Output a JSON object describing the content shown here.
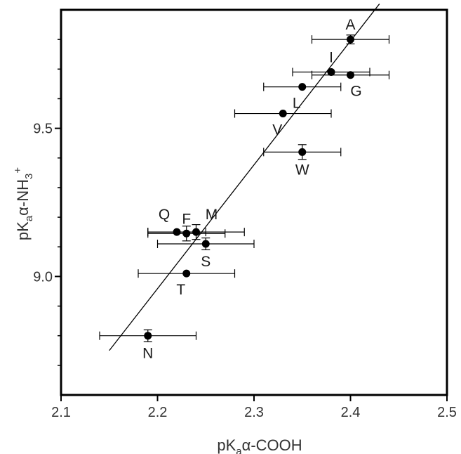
{
  "chart_data": {
    "type": "scatter",
    "title": "",
    "xlabel": {
      "prefix": "pK",
      "sub": "a",
      "suffix": "α-COOH"
    },
    "ylabel": {
      "prefix": "pK",
      "sub": "a",
      "mid": "α-NH",
      "sub2": "3",
      "sup": "+"
    },
    "xlim": [
      2.1,
      2.5
    ],
    "ylim": [
      8.6,
      9.9
    ],
    "x_ticks": [
      {
        "value": 2.1,
        "label": "2.1"
      },
      {
        "value": 2.2,
        "label": "2.2"
      },
      {
        "value": 2.3,
        "label": "2.3"
      },
      {
        "value": 2.4,
        "label": "2.4"
      },
      {
        "value": 2.5,
        "label": "2.5"
      }
    ],
    "y_ticks": [
      {
        "value": 9.0,
        "label": "9.0"
      },
      {
        "value": 9.5,
        "label": "9.5"
      }
    ],
    "y_minor_ticks": [
      8.7,
      8.8,
      8.9,
      9.1,
      9.2,
      9.3,
      9.4,
      9.6,
      9.7,
      9.8
    ],
    "grid": false,
    "points": [
      {
        "label": "A",
        "x": 2.4,
        "y": 9.8,
        "xerr": 0.04,
        "yerr": 0.015,
        "label_pos": "above"
      },
      {
        "label": "I",
        "x": 2.38,
        "y": 9.69,
        "xerr": 0.04,
        "yerr": 0.0,
        "label_pos": "above"
      },
      {
        "label": "G",
        "x": 2.4,
        "y": 9.68,
        "xerr": 0.04,
        "yerr": 0.0,
        "label_pos": "below-right"
      },
      {
        "label": "L",
        "x": 2.35,
        "y": 9.64,
        "xerr": 0.04,
        "yerr": 0.0,
        "label_pos": "below-left"
      },
      {
        "label": "V",
        "x": 2.33,
        "y": 9.55,
        "xerr": 0.05,
        "yerr": 0.0,
        "label_pos": "below-left"
      },
      {
        "label": "W",
        "x": 2.35,
        "y": 9.42,
        "xerr": 0.04,
        "yerr": 0.025,
        "label_pos": "below"
      },
      {
        "label": "Q",
        "x": 2.22,
        "y": 9.15,
        "xerr": 0.03,
        "yerr": 0.0,
        "label_pos": "above-left"
      },
      {
        "label": "F",
        "x": 2.23,
        "y": 9.145,
        "xerr": 0.04,
        "yerr": 0.025,
        "label_pos": "above"
      },
      {
        "label": "M",
        "x": 2.24,
        "y": 9.15,
        "xerr": 0.05,
        "yerr": 0.025,
        "label_pos": "above-right"
      },
      {
        "label": "S",
        "x": 2.25,
        "y": 9.11,
        "xerr": 0.05,
        "yerr": 0.02,
        "label_pos": "below"
      },
      {
        "label": "T",
        "x": 2.23,
        "y": 9.01,
        "xerr": 0.05,
        "yerr": 0.0,
        "label_pos": "below-left"
      },
      {
        "label": "N",
        "x": 2.19,
        "y": 8.8,
        "xerr": 0.05,
        "yerr": 0.02,
        "label_pos": "below"
      }
    ],
    "fit_line": {
      "x": [
        2.15,
        2.43
      ],
      "y": [
        8.75,
        9.92
      ]
    },
    "colors": {
      "axis": "#000000",
      "marker": "#000000",
      "text": "#333333"
    }
  }
}
